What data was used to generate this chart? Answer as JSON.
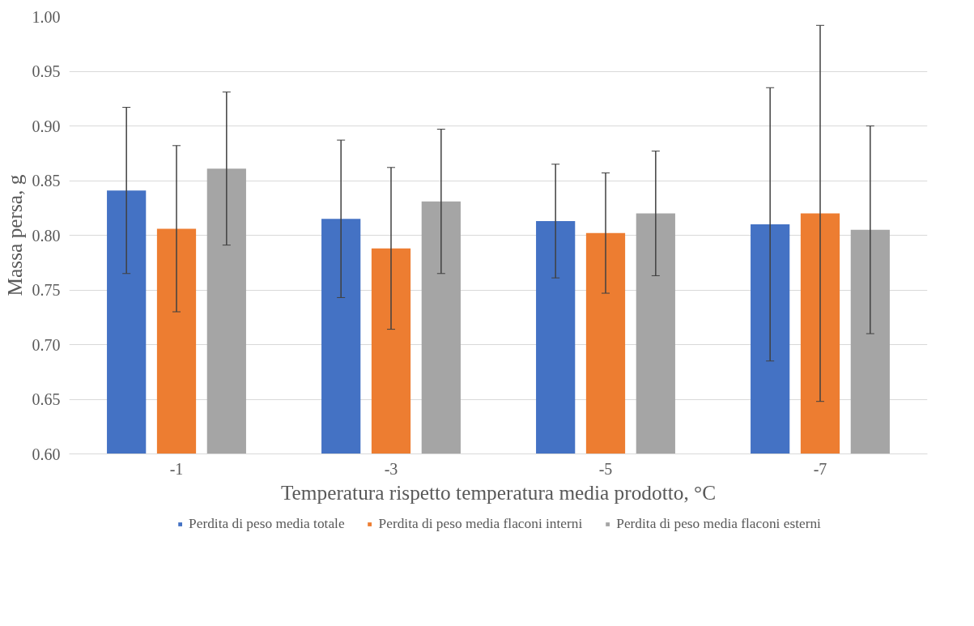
{
  "chart_data": {
    "type": "bar",
    "xlabel": "Temperatura rispetto temperatura media prodotto, °C",
    "ylabel": "Massa persa, g",
    "categories": [
      "-1",
      "-3",
      "-5",
      "-7"
    ],
    "series": [
      {
        "name": "Perdita di peso media totale",
        "color": "#4472c4",
        "values": [
          0.841,
          0.815,
          0.813,
          0.81
        ],
        "errors": [
          0.076,
          0.072,
          0.052,
          0.125
        ]
      },
      {
        "name": "Perdita di peso media flaconi interni",
        "color": "#ed7d31",
        "values": [
          0.806,
          0.788,
          0.802,
          0.82
        ],
        "errors": [
          0.076,
          0.074,
          0.055,
          0.172
        ]
      },
      {
        "name": "Perdita di peso media flaconi esterni",
        "color": "#a5a5a5",
        "values": [
          0.861,
          0.831,
          0.82,
          0.805
        ],
        "errors": [
          0.07,
          0.066,
          0.057,
          0.095
        ]
      }
    ],
    "ylim": [
      0.6,
      1.0
    ],
    "yticks": [
      {
        "value": 0.6,
        "label": "0.60"
      },
      {
        "value": 0.65,
        "label": "0.65"
      },
      {
        "value": 0.7,
        "label": "0.70"
      },
      {
        "value": 0.75,
        "label": "0.75"
      },
      {
        "value": 0.8,
        "label": "0.80"
      },
      {
        "value": 0.85,
        "label": "0.85"
      },
      {
        "value": 0.9,
        "label": "0.90"
      },
      {
        "value": 0.95,
        "label": "0.95"
      },
      {
        "value": 1.0,
        "label": "1.00"
      }
    ],
    "grid": "y",
    "legend": "bottom"
  }
}
